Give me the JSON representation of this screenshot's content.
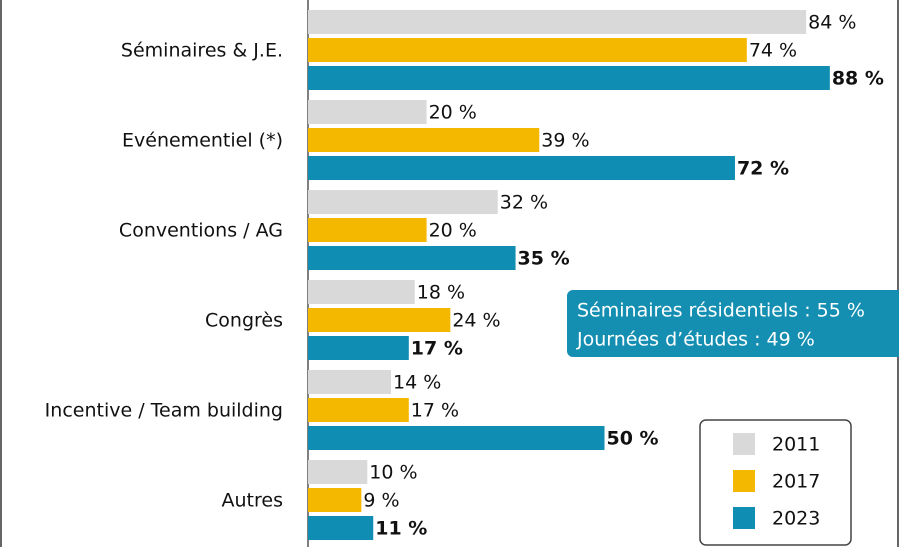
{
  "chart_data": {
    "type": "hbar",
    "categories": [
      "Séminaires & J.E.",
      "Evénementiel (*)",
      "Conventions / AG",
      "Congrès",
      "Incentive / Team building",
      "Autres"
    ],
    "series": [
      {
        "name": "2011",
        "color": "#d9d9d9",
        "values": [
          84,
          20,
          32,
          18,
          14,
          10
        ],
        "value_labels": [
          "84 %",
          "20 %",
          "32 %",
          "18 %",
          "14 %",
          "10 %"
        ]
      },
      {
        "name": "2017",
        "color": "#f5b800",
        "values": [
          74,
          39,
          20,
          24,
          17,
          9
        ],
        "value_labels": [
          "74 %",
          "39 %",
          "20 %",
          "24 %",
          "17 %",
          "9 %"
        ]
      },
      {
        "name": "2023",
        "color": "#0f8db3",
        "bold": true,
        "values": [
          88,
          72,
          35,
          17,
          50,
          11
        ],
        "value_labels": [
          "88 %",
          "72 %",
          "35 %",
          "17 %",
          "50 %",
          "11 %"
        ]
      }
    ],
    "annotations": [
      "Séminaires résidentiels : 55 %",
      "Journées d’études : 49 %"
    ],
    "legend": "lower right"
  }
}
